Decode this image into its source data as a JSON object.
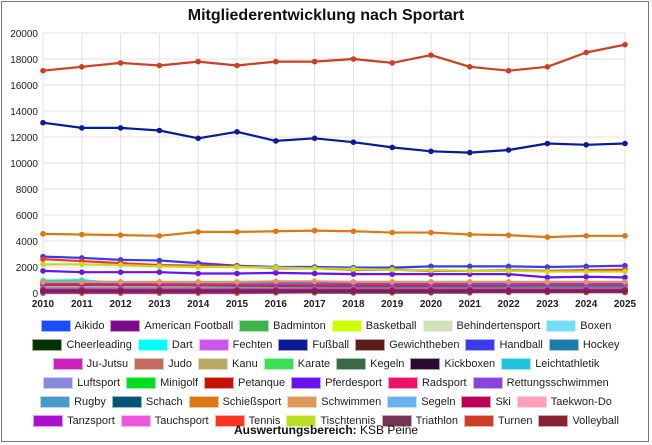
{
  "chart_data": {
    "type": "line",
    "title": "Mitgliederentwicklung nach Sportart",
    "xlabel": "",
    "ylabel": "",
    "x": [
      2010,
      2011,
      2012,
      2013,
      2014,
      2015,
      2016,
      2017,
      2018,
      2019,
      2020,
      2021,
      2022,
      2023,
      2024,
      2025
    ],
    "ylim": [
      0,
      20000
    ],
    "yticks": [
      0,
      2000,
      4000,
      6000,
      8000,
      10000,
      12000,
      14000,
      16000,
      18000,
      20000
    ],
    "grid": true,
    "legend_placement": "bottom",
    "series": [
      {
        "name": "Aikido",
        "color": "#1a4dff",
        "values": [
          30,
          30,
          30,
          30,
          30,
          30,
          null,
          null,
          null,
          null,
          null,
          null,
          null,
          null,
          null,
          null
        ]
      },
      {
        "name": "American Football",
        "color": "#7a0a8a",
        "values": [
          0,
          0,
          0,
          0,
          0,
          0,
          20,
          40,
          60,
          60,
          60,
          60,
          60,
          60,
          60,
          60
        ]
      },
      {
        "name": "Badminton",
        "color": "#3cb44b",
        "values": [
          750,
          700,
          650,
          650,
          620,
          600,
          580,
          560,
          550,
          520,
          500,
          480,
          470,
          450,
          500,
          520
        ]
      },
      {
        "name": "Basketball",
        "color": "#ccff00",
        "values": [
          150,
          150,
          160,
          170,
          170,
          180,
          200,
          210,
          220,
          230,
          230,
          240,
          250,
          260,
          280,
          300
        ]
      },
      {
        "name": "Behindertensport",
        "color": "#cfe3b8",
        "values": [
          450,
          440,
          430,
          420,
          420,
          410,
          400,
          390,
          380,
          380,
          370,
          360,
          360,
          350,
          350,
          350
        ]
      },
      {
        "name": "Boxen",
        "color": "#72e0f2",
        "values": [
          100,
          100,
          110,
          110,
          120,
          120,
          120,
          130,
          130,
          130,
          130,
          130,
          130,
          130,
          130,
          130
        ]
      },
      {
        "name": "Cheerleading",
        "color": "#003300",
        "values": [
          null,
          null,
          null,
          null,
          null,
          null,
          null,
          20,
          20,
          20,
          20,
          20,
          null,
          null,
          null,
          null
        ]
      },
      {
        "name": "Dart",
        "color": "#00ffff",
        "values": [
          950,
          1000,
          700,
          700,
          700,
          700,
          700,
          700,
          700,
          700,
          750,
          750,
          750,
          750,
          750,
          750
        ]
      },
      {
        "name": "Fechten",
        "color": "#cc55ee",
        "values": [
          50,
          50,
          50,
          50,
          50,
          50,
          50,
          50,
          50,
          50,
          50,
          50,
          50,
          50,
          50,
          50
        ]
      },
      {
        "name": "Fußball",
        "color": "#0a1a99",
        "values": [
          13100,
          12700,
          12700,
          12500,
          11900,
          12400,
          11700,
          11900,
          11600,
          11200,
          10900,
          10800,
          11000,
          11500,
          11400,
          11500
        ]
      },
      {
        "name": "Gewichtheben",
        "color": "#5a1f18",
        "values": [
          80,
          80,
          80,
          80,
          80,
          80,
          80,
          80,
          80,
          80,
          80,
          80,
          80,
          80,
          80,
          80
        ]
      },
      {
        "name": "Handball",
        "color": "#3b3bee",
        "values": [
          2800,
          2700,
          2550,
          2500,
          2300,
          2100,
          2000,
          2000,
          1950,
          1950,
          2050,
          2050,
          2050,
          2000,
          2050,
          2100
        ]
      },
      {
        "name": "Hockey",
        "color": "#1a7aaa",
        "values": [
          200,
          200,
          200,
          200,
          200,
          200,
          200,
          200,
          200,
          200,
          200,
          200,
          200,
          200,
          200,
          200
        ]
      },
      {
        "name": "Ju-Jutsu",
        "color": "#cc22bb",
        "values": [
          300,
          300,
          300,
          300,
          300,
          300,
          300,
          300,
          320,
          340,
          350,
          350,
          350,
          350,
          350,
          350
        ]
      },
      {
        "name": "Judo",
        "color": "#c46a5e",
        "values": [
          850,
          850,
          800,
          800,
          800,
          800,
          850,
          850,
          800,
          800,
          800,
          800,
          800,
          800,
          800,
          800
        ]
      },
      {
        "name": "Kanu",
        "color": "#bba966",
        "values": [
          250,
          250,
          250,
          250,
          250,
          250,
          250,
          250,
          250,
          250,
          250,
          250,
          250,
          250,
          250,
          250
        ]
      },
      {
        "name": "Karate",
        "color": "#3ddd55",
        "values": [
          400,
          400,
          400,
          400,
          400,
          400,
          400,
          400,
          400,
          400,
          400,
          400,
          400,
          400,
          400,
          400
        ]
      },
      {
        "name": "Kegeln",
        "color": "#3a6a44",
        "values": [
          700,
          650,
          620,
          600,
          580,
          560,
          540,
          520,
          500,
          480,
          460,
          440,
          420,
          400,
          400,
          400
        ]
      },
      {
        "name": "Kickboxen",
        "color": "#2a0a33",
        "values": [
          null,
          null,
          null,
          null,
          null,
          null,
          null,
          null,
          null,
          null,
          null,
          null,
          null,
          null,
          null,
          50
        ]
      },
      {
        "name": "Leichtathletik",
        "color": "#22c4dd",
        "values": [
          900,
          900,
          850,
          850,
          850,
          850,
          850,
          850,
          850,
          850,
          850,
          850,
          850,
          850,
          850,
          850
        ]
      },
      {
        "name": "Luftsport",
        "color": "#8888dd",
        "values": [
          350,
          350,
          350,
          350,
          350,
          350,
          350,
          350,
          350,
          350,
          350,
          350,
          350,
          350,
          350,
          350
        ]
      },
      {
        "name": "Minigolf",
        "color": "#00dd22",
        "values": [
          100,
          100,
          100,
          100,
          100,
          100,
          100,
          100,
          100,
          100,
          100,
          100,
          100,
          100,
          100,
          100
        ]
      },
      {
        "name": "Petanque",
        "color": "#c4140a",
        "values": [
          50,
          50,
          50,
          50,
          50,
          50,
          50,
          50,
          50,
          50,
          50,
          50,
          50,
          50,
          50,
          50
        ]
      },
      {
        "name": "Pferdesport",
        "color": "#6a11ee",
        "values": [
          1700,
          1600,
          1600,
          1600,
          1500,
          1500,
          1550,
          1500,
          1450,
          1450,
          1450,
          1450,
          1450,
          1200,
          1250,
          1200
        ]
      },
      {
        "name": "Radsport",
        "color": "#ee1166",
        "values": [
          600,
          600,
          600,
          600,
          600,
          600,
          600,
          600,
          600,
          600,
          600,
          600,
          600,
          600,
          600,
          600
        ]
      },
      {
        "name": "Rettungsschwimmen",
        "color": "#8844dd",
        "values": [
          800,
          800,
          800,
          800,
          800,
          800,
          800,
          800,
          750,
          750,
          750,
          700,
          700,
          700,
          700,
          700
        ]
      },
      {
        "name": "Rugby",
        "color": "#4a99cc",
        "values": [
          60,
          60,
          60,
          60,
          60,
          60,
          60,
          60,
          60,
          60,
          60,
          60,
          60,
          60,
          60,
          60
        ]
      },
      {
        "name": "Schach",
        "color": "#005577",
        "values": [
          150,
          150,
          150,
          150,
          150,
          150,
          150,
          150,
          150,
          150,
          150,
          150,
          150,
          150,
          150,
          150
        ]
      },
      {
        "name": "Schießsport",
        "color": "#dd7711",
        "values": [
          4550,
          4500,
          4450,
          4400,
          4700,
          4700,
          4750,
          4800,
          4750,
          4650,
          4650,
          4500,
          4450,
          4300,
          4400,
          4400
        ]
      },
      {
        "name": "Schwimmen",
        "color": "#dd9955",
        "values": [
          850,
          850,
          850,
          850,
          850,
          850,
          900,
          900,
          850,
          850,
          850,
          850,
          850,
          850,
          850,
          850
        ]
      },
      {
        "name": "Segeln",
        "color": "#66b4ee",
        "values": [
          300,
          300,
          300,
          300,
          300,
          300,
          300,
          300,
          300,
          300,
          300,
          300,
          300,
          300,
          300,
          300
        ]
      },
      {
        "name": "Ski",
        "color": "#bb0055",
        "values": [
          250,
          250,
          250,
          250,
          250,
          250,
          250,
          250,
          250,
          250,
          250,
          250,
          250,
          250,
          250,
          250
        ]
      },
      {
        "name": "Taekwon-Do",
        "color": "#ff9fbb",
        "values": [
          100,
          100,
          100,
          100,
          100,
          100,
          100,
          100,
          100,
          100,
          100,
          100,
          100,
          100,
          100,
          100
        ]
      },
      {
        "name": "Tanzsport",
        "color": "#aa11cc",
        "values": [
          200,
          200,
          200,
          200,
          200,
          200,
          200,
          200,
          200,
          200,
          200,
          200,
          200,
          200,
          200,
          200
        ]
      },
      {
        "name": "Tauchsport",
        "color": "#ee55dd",
        "values": [
          50,
          50,
          50,
          50,
          50,
          50,
          50,
          50,
          50,
          50,
          50,
          50,
          50,
          50,
          50,
          50
        ]
      },
      {
        "name": "Tennis",
        "color": "#ff3322",
        "values": [
          2600,
          2450,
          2300,
          2150,
          2100,
          2050,
          1900,
          1900,
          1800,
          1800,
          1700,
          1700,
          1750,
          1700,
          1750,
          1800
        ]
      },
      {
        "name": "Tischtennis",
        "color": "#bbdd22",
        "values": [
          2200,
          2200,
          2150,
          2050,
          2000,
          2000,
          1950,
          1900,
          1850,
          1800,
          1750,
          1700,
          1700,
          1650,
          1650,
          1650
        ]
      },
      {
        "name": "Triathlon",
        "color": "#773355",
        "values": [
          80,
          80,
          80,
          80,
          80,
          80,
          80,
          80,
          80,
          80,
          80,
          80,
          80,
          80,
          80,
          80
        ]
      },
      {
        "name": "Turnen",
        "color": "#cc3f22",
        "values": [
          17100,
          17400,
          17700,
          17500,
          17800,
          17500,
          17800,
          17800,
          18000,
          17700,
          18300,
          17400,
          17100,
          17400,
          18500,
          19100
        ]
      },
      {
        "name": "Volleyball",
        "color": "#882233",
        "values": [
          150,
          150,
          150,
          150,
          150,
          150,
          150,
          150,
          150,
          150,
          150,
          150,
          150,
          150,
          150,
          150
        ]
      }
    ]
  },
  "footer": {
    "label": "Auswertungsbereich:",
    "value": "KSB Peine"
  }
}
